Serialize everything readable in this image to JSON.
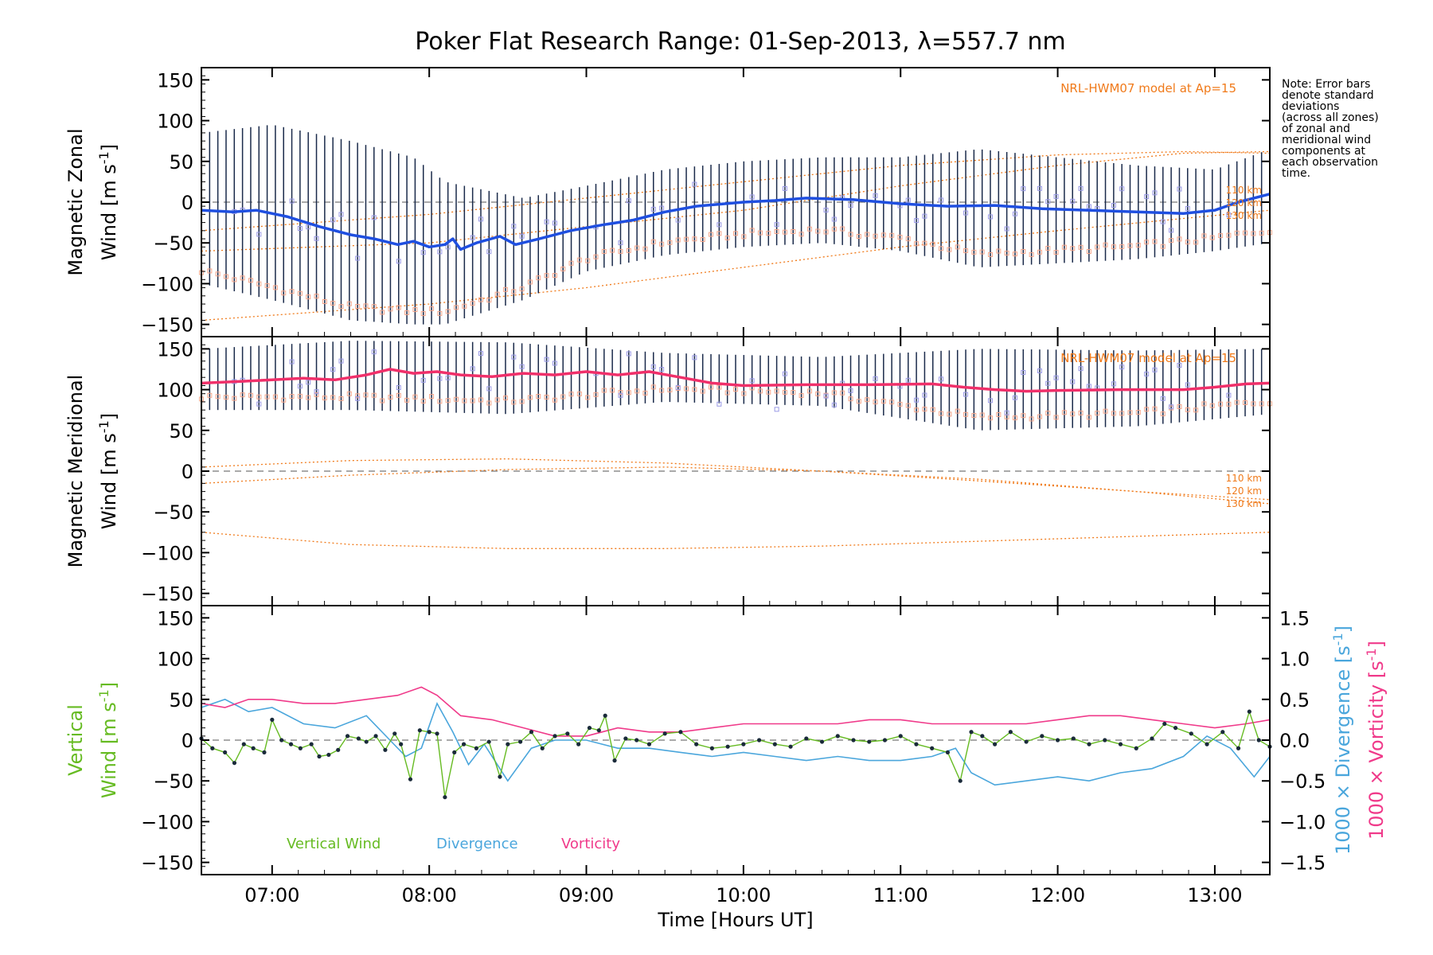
{
  "title": "Poker Flat Research Range: 01-Sep-2013, λ=557.7 nm",
  "note": [
    "Note: Error bars",
    "denote standard",
    "deviations",
    "(across all zones)",
    "of zonal and",
    "meridional wind",
    "components at",
    "each observation",
    "time."
  ],
  "colors": {
    "zonal": "#1f4fe0",
    "meridional": "#f0306a",
    "vertical": "#66bb22",
    "divergence": "#4aa6dc",
    "vorticity": "#f03a8a",
    "model": "#f07a1a",
    "errorbar": "#1a2a4a",
    "zone_lo": "#f5a58a",
    "zone_hi": "#9a9ae6"
  },
  "chart_data": [
    {
      "type": "line",
      "panel": "zonal",
      "title": "Poker Flat Research Range: 01-Sep-2013, λ=557.7 nm",
      "xlabel": "",
      "ylabel_top": "Magnetic Zonal",
      "ylabel_bottom_prefix": "Wind ",
      "ylabel_units": "[m s",
      "ylabel_units_exp": "-1",
      "ylabel_units_end": "]",
      "xlim": [
        6.55,
        13.35
      ],
      "ylim": [
        -165,
        165
      ],
      "yticks": [
        150,
        100,
        50,
        0,
        -50,
        -100,
        -150
      ],
      "xticks": [
        "07:00",
        "08:00",
        "09:00",
        "10:00",
        "11:00",
        "12:00",
        "13:00"
      ],
      "model_label": "NRL-HWM07 model at Ap=15",
      "model_alt_labels": [
        "110 km",
        "120 km",
        "130 km"
      ],
      "series": [
        {
          "name": "Zonal Wind",
          "x": [
            6.55,
            6.75,
            6.9,
            7.1,
            7.3,
            7.5,
            7.65,
            7.8,
            7.9,
            8.0,
            8.1,
            8.15,
            8.2,
            8.3,
            8.45,
            8.55,
            8.7,
            8.9,
            9.1,
            9.3,
            9.5,
            9.7,
            10.0,
            10.2,
            10.4,
            10.7,
            11.0,
            11.3,
            11.6,
            11.9,
            12.2,
            12.5,
            12.8,
            13.0,
            13.15,
            13.35
          ],
          "values": [
            -10,
            -12,
            -10,
            -18,
            -30,
            -40,
            -45,
            -52,
            -48,
            -55,
            -52,
            -45,
            -58,
            -50,
            -42,
            -52,
            -45,
            -35,
            -28,
            -22,
            -12,
            -5,
            0,
            2,
            5,
            3,
            -2,
            -5,
            -4,
            -8,
            -10,
            -12,
            -14,
            -10,
            0,
            10
          ]
        },
        {
          "name": "Error bar top",
          "x": [
            6.55,
            7.0,
            7.5,
            7.9,
            8.1,
            8.6,
            9.0,
            9.5,
            10.0,
            10.5,
            11.0,
            11.5,
            12.0,
            12.5,
            13.0,
            13.35
          ],
          "values": [
            85,
            95,
            75,
            55,
            25,
            5,
            20,
            40,
            50,
            55,
            55,
            65,
            55,
            45,
            40,
            65
          ]
        },
        {
          "name": "Error bar bottom",
          "x": [
            6.55,
            7.0,
            7.5,
            7.9,
            8.1,
            8.6,
            9.0,
            9.5,
            10.0,
            10.5,
            11.0,
            11.5,
            12.0,
            12.5,
            13.0,
            13.35
          ],
          "values": [
            -100,
            -120,
            -145,
            -150,
            -150,
            -120,
            -85,
            -65,
            -55,
            -50,
            -60,
            -80,
            -75,
            -70,
            -60,
            -50
          ]
        },
        {
          "name": "Model 110 km",
          "x": [
            6.55,
            8.0,
            9.0,
            10.0,
            11.0,
            12.0,
            12.8,
            13.35
          ],
          "values": [
            -60,
            -50,
            -30,
            -10,
            20,
            45,
            60,
            62
          ]
        },
        {
          "name": "Model 120 km",
          "x": [
            6.55,
            8.0,
            9.0,
            10.0,
            11.0,
            12.0,
            12.8,
            13.35
          ],
          "values": [
            -145,
            -125,
            -105,
            -80,
            -55,
            -35,
            -20,
            -10
          ]
        },
        {
          "name": "Model 130 km",
          "x": [
            6.55,
            8.0,
            9.0,
            10.0,
            11.0,
            12.0,
            12.8,
            13.35
          ],
          "values": [
            -35,
            -15,
            5,
            25,
            45,
            58,
            62,
            60
          ]
        }
      ]
    },
    {
      "type": "line",
      "panel": "meridional",
      "xlabel": "",
      "ylabel_top": "Magnetic Meridional",
      "ylabel_bottom_prefix": "Wind ",
      "ylabel_units": "[m s",
      "ylabel_units_exp": "-1",
      "ylabel_units_end": "]",
      "xlim": [
        6.55,
        13.35
      ],
      "ylim": [
        -165,
        165
      ],
      "yticks": [
        150,
        100,
        50,
        0,
        -50,
        -100,
        -150
      ],
      "model_label": "NRL-HWM07 model at Ap=15",
      "model_alt_labels": [
        "110 km",
        "120 km",
        "130 km"
      ],
      "series": [
        {
          "name": "Meridional Wind",
          "x": [
            6.55,
            6.8,
            7.0,
            7.2,
            7.4,
            7.6,
            7.75,
            7.9,
            8.05,
            8.2,
            8.4,
            8.6,
            8.8,
            9.0,
            9.2,
            9.4,
            9.6,
            9.8,
            10.0,
            10.4,
            10.8,
            11.2,
            11.4,
            11.6,
            11.8,
            12.0,
            12.4,
            12.8,
            13.0,
            13.2,
            13.35
          ],
          "values": [
            108,
            110,
            112,
            114,
            112,
            118,
            125,
            120,
            122,
            118,
            116,
            120,
            118,
            122,
            118,
            122,
            115,
            108,
            105,
            106,
            106,
            107,
            103,
            100,
            98,
            99,
            100,
            100,
            103,
            107,
            108
          ]
        },
        {
          "name": "Error bar top",
          "x": [
            6.55,
            7.5,
            8.5,
            9.5,
            10.5,
            11.5,
            12.5,
            13.35
          ],
          "values": [
            150,
            160,
            158,
            145,
            140,
            150,
            148,
            150
          ]
        },
        {
          "name": "Error bar bottom",
          "x": [
            6.55,
            7.5,
            8.5,
            9.5,
            10.5,
            11.5,
            12.5,
            13.35
          ],
          "values": [
            75,
            75,
            70,
            85,
            80,
            50,
            55,
            70
          ]
        },
        {
          "name": "Model 110 km",
          "x": [
            6.55,
            7.5,
            8.5,
            9.5,
            10.5,
            11.5,
            12.5,
            13.35
          ],
          "values": [
            5,
            13,
            15,
            10,
            0,
            -12,
            -25,
            -35
          ]
        },
        {
          "name": "Model 120 km",
          "x": [
            6.55,
            7.5,
            8.5,
            9.5,
            10.5,
            11.5,
            12.5,
            13.35
          ],
          "values": [
            -15,
            -5,
            2,
            5,
            0,
            -10,
            -25,
            -40
          ]
        },
        {
          "name": "Model 130 km",
          "x": [
            6.55,
            7.5,
            8.5,
            9.5,
            10.5,
            11.5,
            12.5,
            13.35
          ],
          "values": [
            -75,
            -90,
            -95,
            -95,
            -92,
            -86,
            -80,
            -75
          ]
        }
      ]
    },
    {
      "type": "line",
      "panel": "vertical",
      "xlabel_prefix": "Time ",
      "xlabel_units": "[Hours UT]",
      "ylabel_top": "Vertical",
      "ylabel_bottom_prefix": "Wind ",
      "ylabel_units": "[m s",
      "ylabel_units_exp": "-1",
      "ylabel_units_end": "]",
      "y2label_div_prefix": "1000 × Divergence ",
      "y2label_vort_prefix": "1000 × Vorticity ",
      "y2label_units": "[s",
      "y2label_units_exp": "-1",
      "y2label_units_end": "]",
      "xlim": [
        6.55,
        13.35
      ],
      "ylim": [
        -165,
        165
      ],
      "y2lim": [
        -1.65,
        1.65
      ],
      "yticks": [
        150,
        100,
        50,
        0,
        -50,
        -100,
        -150
      ],
      "y2ticks": [
        "1.5",
        "1.0",
        "0.5",
        "0.0",
        "-0.5",
        "-1.0",
        "-1.5"
      ],
      "xticks": [
        "07:00",
        "08:00",
        "09:00",
        "10:00",
        "11:00",
        "12:00",
        "13:00"
      ],
      "legend": [
        "Vertical Wind",
        "Divergence",
        "Vorticity"
      ],
      "series": [
        {
          "name": "Vertical Wind",
          "x": [
            6.55,
            6.62,
            6.7,
            6.76,
            6.82,
            6.88,
            6.95,
            7.0,
            7.06,
            7.12,
            7.18,
            7.25,
            7.3,
            7.36,
            7.42,
            7.48,
            7.55,
            7.6,
            7.66,
            7.72,
            7.78,
            7.82,
            7.88,
            7.94,
            8.0,
            8.05,
            8.1,
            8.16,
            8.22,
            8.3,
            8.38,
            8.45,
            8.5,
            8.58,
            8.65,
            8.72,
            8.8,
            8.88,
            8.95,
            9.02,
            9.08,
            9.12,
            9.18,
            9.25,
            9.32,
            9.4,
            9.5,
            9.6,
            9.7,
            9.8,
            9.9,
            10.0,
            10.1,
            10.2,
            10.3,
            10.4,
            10.5,
            10.6,
            10.7,
            10.8,
            10.9,
            11.0,
            11.1,
            11.2,
            11.3,
            11.38,
            11.45,
            11.52,
            11.6,
            11.7,
            11.8,
            11.9,
            12.0,
            12.1,
            12.2,
            12.3,
            12.4,
            12.5,
            12.6,
            12.68,
            12.75,
            12.85,
            12.95,
            13.05,
            13.15,
            13.22,
            13.28,
            13.35
          ],
          "values": [
            2,
            -10,
            -15,
            -28,
            -5,
            -10,
            -15,
            25,
            0,
            -5,
            -10,
            -5,
            -20,
            -18,
            -12,
            5,
            2,
            -2,
            5,
            -12,
            8,
            -5,
            -48,
            12,
            10,
            8,
            -70,
            -15,
            -5,
            -10,
            -2,
            -45,
            -5,
            -2,
            10,
            -10,
            5,
            8,
            -5,
            15,
            12,
            30,
            -25,
            2,
            0,
            -5,
            8,
            10,
            -5,
            -10,
            -8,
            -5,
            0,
            -5,
            -8,
            2,
            -2,
            5,
            0,
            -2,
            0,
            5,
            -5,
            -10,
            -15,
            -50,
            10,
            5,
            -5,
            10,
            -2,
            5,
            0,
            2,
            -5,
            0,
            -5,
            -10,
            2,
            20,
            15,
            8,
            -5,
            10,
            -10,
            35,
            0,
            -8
          ]
        },
        {
          "name": "Divergence",
          "x": [
            6.55,
            6.7,
            6.85,
            7.0,
            7.2,
            7.4,
            7.6,
            7.75,
            7.85,
            7.95,
            8.05,
            8.15,
            8.25,
            8.35,
            8.5,
            8.65,
            8.8,
            9.0,
            9.2,
            9.4,
            9.6,
            9.8,
            10.0,
            10.2,
            10.4,
            10.6,
            10.8,
            11.0,
            11.2,
            11.35,
            11.45,
            11.6,
            11.8,
            12.0,
            12.2,
            12.4,
            12.6,
            12.8,
            12.95,
            13.1,
            13.25,
            13.35
          ],
          "values": [
            0.4,
            0.5,
            0.35,
            0.4,
            0.2,
            0.15,
            0.3,
            0.0,
            -0.2,
            -0.1,
            0.45,
            0.1,
            -0.3,
            -0.05,
            -0.5,
            -0.1,
            0.0,
            0.0,
            -0.1,
            -0.1,
            -0.15,
            -0.2,
            -0.15,
            -0.2,
            -0.25,
            -0.2,
            -0.25,
            -0.25,
            -0.2,
            -0.1,
            -0.4,
            -0.55,
            -0.5,
            -0.45,
            -0.5,
            -0.4,
            -0.35,
            -0.2,
            0.05,
            -0.1,
            -0.45,
            -0.2
          ]
        },
        {
          "name": "Vorticity",
          "x": [
            6.55,
            6.7,
            6.85,
            7.0,
            7.2,
            7.4,
            7.6,
            7.8,
            7.95,
            8.05,
            8.2,
            8.4,
            8.6,
            8.8,
            9.0,
            9.2,
            9.4,
            9.6,
            9.8,
            10.0,
            10.2,
            10.4,
            10.6,
            10.8,
            11.0,
            11.2,
            11.4,
            11.6,
            11.8,
            12.0,
            12.2,
            12.4,
            12.6,
            12.8,
            13.0,
            13.2,
            13.35
          ],
          "values": [
            0.45,
            0.4,
            0.5,
            0.5,
            0.45,
            0.45,
            0.5,
            0.55,
            0.65,
            0.55,
            0.3,
            0.25,
            0.15,
            0.05,
            0.05,
            0.15,
            0.1,
            0.1,
            0.15,
            0.2,
            0.2,
            0.2,
            0.2,
            0.25,
            0.25,
            0.2,
            0.2,
            0.2,
            0.2,
            0.25,
            0.3,
            0.3,
            0.25,
            0.2,
            0.15,
            0.2,
            0.25
          ]
        }
      ]
    }
  ]
}
